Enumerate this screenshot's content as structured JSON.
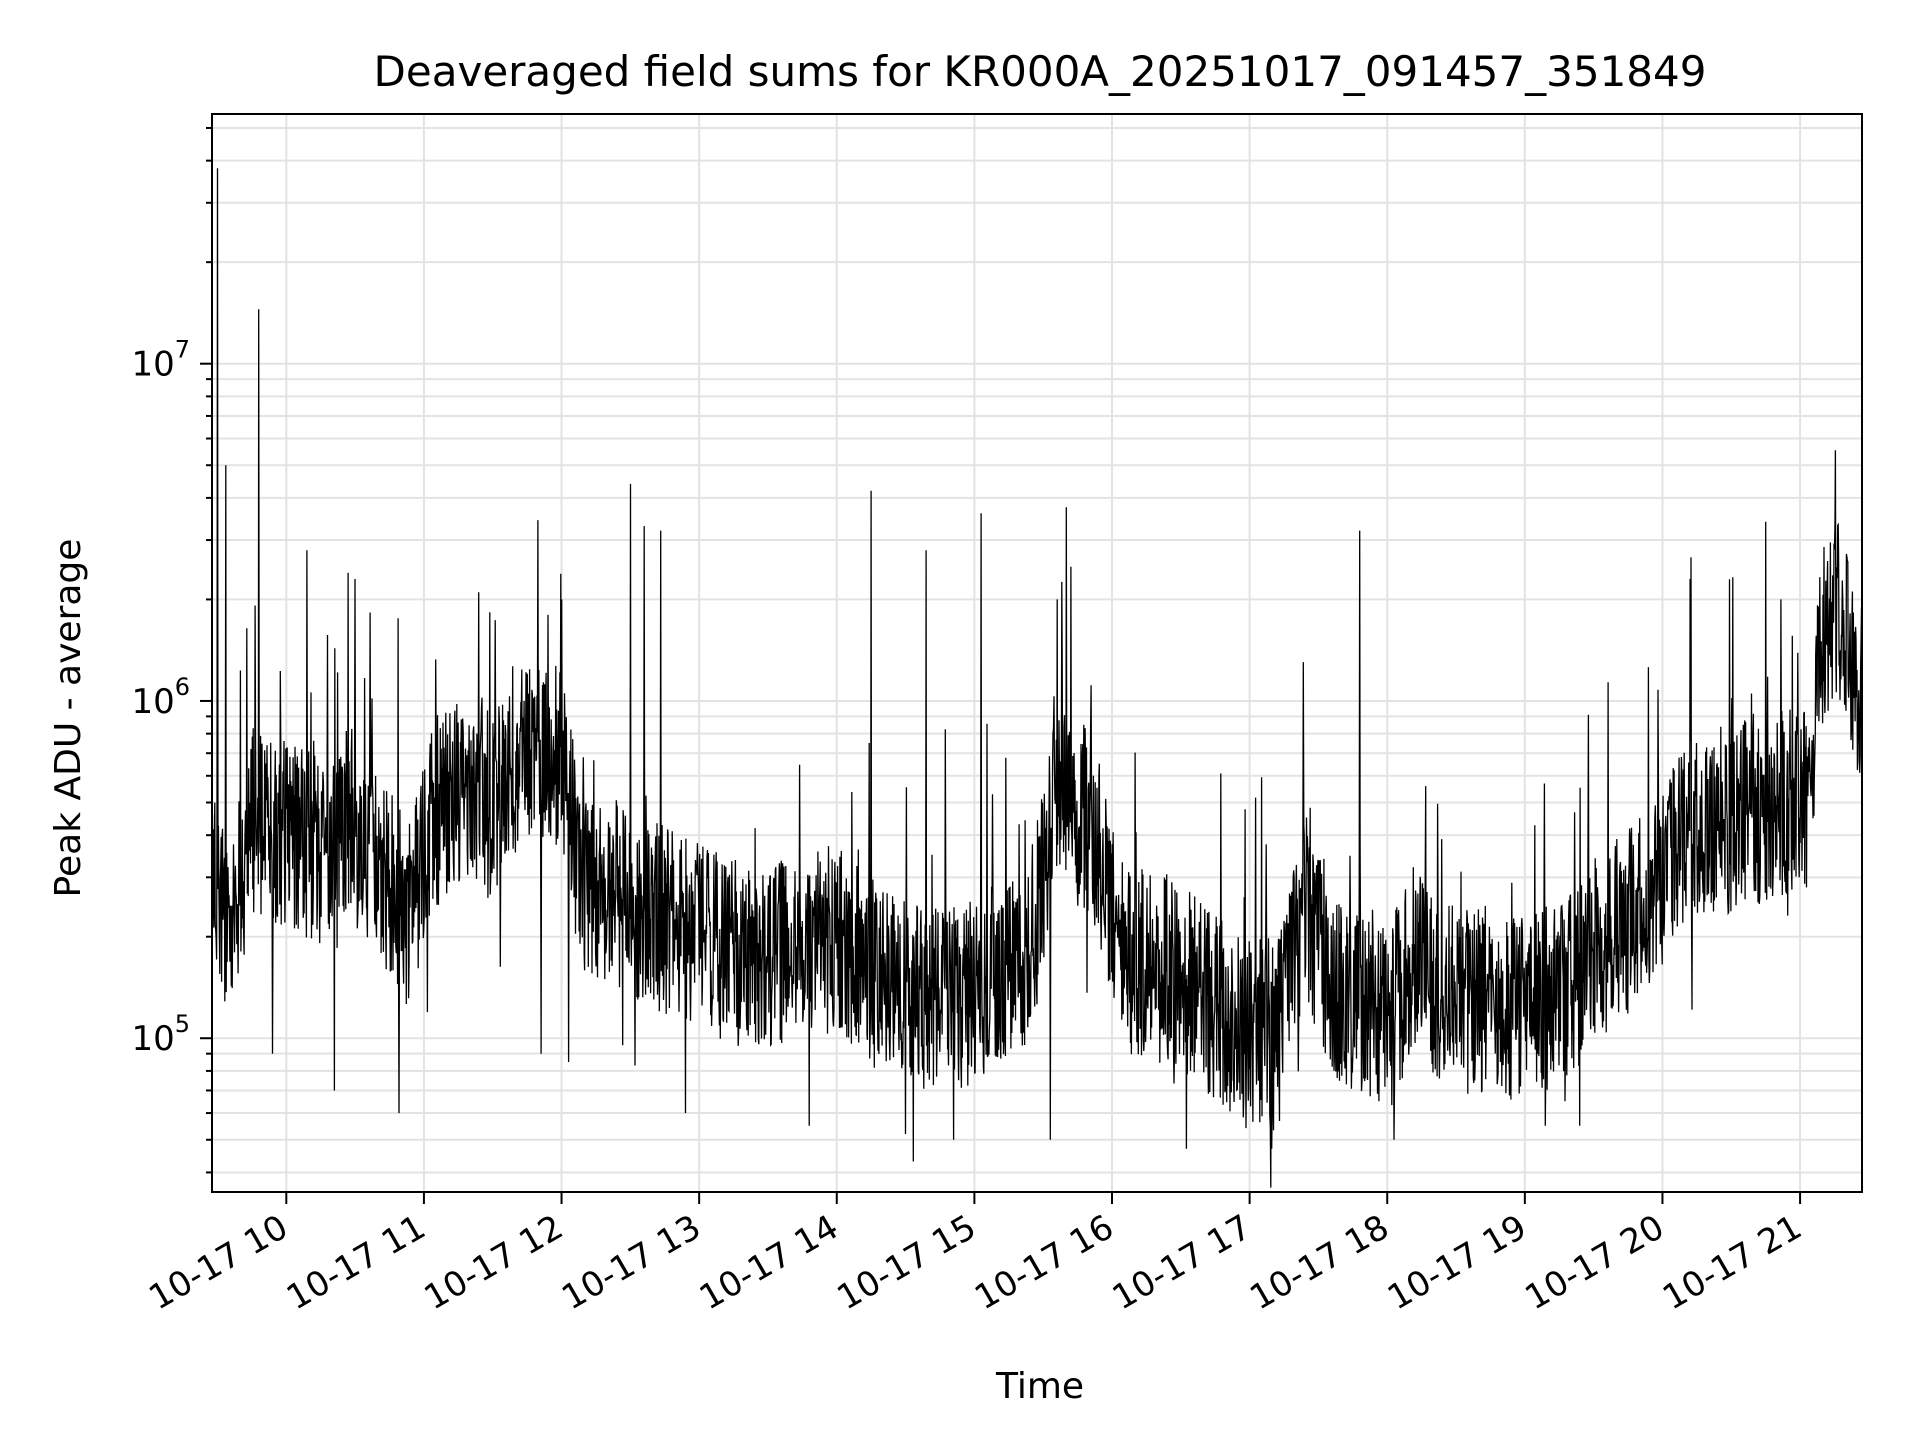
{
  "chart_data": {
    "type": "line",
    "title": "Deaveraged field sums for KR000A_20251017_091457_351849",
    "xlabel": "Time",
    "ylabel": "Peak ADU - average",
    "xscale": "time",
    "yscale": "log",
    "xlim_hours": [
      9.46,
      21.45
    ],
    "ylim": [
      35000,
      55000000
    ],
    "grid": true,
    "x_ticks": [
      {
        "label": "10-17 10",
        "hour": 10
      },
      {
        "label": "10-17 11",
        "hour": 11
      },
      {
        "label": "10-17 12",
        "hour": 12
      },
      {
        "label": "10-17 13",
        "hour": 13
      },
      {
        "label": "10-17 14",
        "hour": 14
      },
      {
        "label": "10-17 15",
        "hour": 15
      },
      {
        "label": "10-17 16",
        "hour": 16
      },
      {
        "label": "10-17 17",
        "hour": 17
      },
      {
        "label": "10-17 18",
        "hour": 18
      },
      {
        "label": "10-17 19",
        "hour": 19
      },
      {
        "label": "10-17 20",
        "hour": 20
      },
      {
        "label": "10-17 21",
        "hour": 21
      }
    ],
    "y_ticks": [
      {
        "base": "10",
        "exp": "5",
        "value": 100000
      },
      {
        "base": "10",
        "exp": "6",
        "value": 1000000
      },
      {
        "base": "10",
        "exp": "7",
        "value": 10000000
      }
    ],
    "series": [
      {
        "name": "Peak ADU - average",
        "color": "#000000",
        "base_profile": [
          [
            9.46,
            300000
          ],
          [
            9.6,
            200000
          ],
          [
            9.75,
            450000
          ],
          [
            10.0,
            400000
          ],
          [
            10.3,
            350000
          ],
          [
            10.55,
            400000
          ],
          [
            10.9,
            230000
          ],
          [
            11.05,
            450000
          ],
          [
            11.3,
            550000
          ],
          [
            11.5,
            480000
          ],
          [
            11.8,
            750000
          ],
          [
            12.0,
            650000
          ],
          [
            12.15,
            300000
          ],
          [
            12.5,
            250000
          ],
          [
            12.8,
            220000
          ],
          [
            13.2,
            180000
          ],
          [
            13.6,
            180000
          ],
          [
            14.0,
            200000
          ],
          [
            14.3,
            150000
          ],
          [
            14.6,
            130000
          ],
          [
            14.9,
            130000
          ],
          [
            15.2,
            160000
          ],
          [
            15.4,
            180000
          ],
          [
            15.6,
            500000
          ],
          [
            15.85,
            450000
          ],
          [
            16.05,
            180000
          ],
          [
            16.5,
            150000
          ],
          [
            16.9,
            110000
          ],
          [
            17.2,
            100000
          ],
          [
            17.4,
            250000
          ],
          [
            17.6,
            150000
          ],
          [
            17.8,
            120000
          ],
          [
            18.0,
            110000
          ],
          [
            18.2,
            180000
          ],
          [
            18.4,
            130000
          ],
          [
            18.7,
            130000
          ],
          [
            19.0,
            120000
          ],
          [
            19.3,
            140000
          ],
          [
            19.6,
            200000
          ],
          [
            19.9,
            250000
          ],
          [
            20.1,
            400000
          ],
          [
            20.5,
            450000
          ],
          [
            20.9,
            500000
          ],
          [
            21.05,
            500000
          ],
          [
            21.15,
            1500000
          ],
          [
            21.3,
            2000000
          ],
          [
            21.45,
            1000000
          ]
        ],
        "spikes": [
          [
            9.5,
            38000000
          ],
          [
            9.56,
            5000000
          ],
          [
            9.8,
            14500000
          ],
          [
            10.15,
            2800000
          ],
          [
            10.45,
            2400000
          ],
          [
            10.5,
            2300000
          ],
          [
            11.4,
            2100000
          ],
          [
            11.9,
            1800000
          ],
          [
            12.0,
            2000000
          ],
          [
            12.5,
            4400000
          ],
          [
            12.6,
            3300000
          ],
          [
            12.72,
            3200000
          ],
          [
            14.25,
            4200000
          ],
          [
            14.65,
            2800000
          ],
          [
            15.05,
            3600000
          ],
          [
            15.6,
            2000000
          ],
          [
            15.7,
            2500000
          ],
          [
            17.8,
            3200000
          ],
          [
            20.2,
            2300000
          ],
          [
            20.75,
            3400000
          ],
          [
            20.86,
            2000000
          ],
          [
            21.2,
            2600000
          ]
        ],
        "dips": [
          [
            9.9,
            90000
          ],
          [
            10.35,
            70000
          ],
          [
            10.82,
            60000
          ],
          [
            11.85,
            90000
          ],
          [
            12.05,
            85000
          ],
          [
            12.9,
            60000
          ],
          [
            13.8,
            55000
          ],
          [
            14.5,
            52000
          ],
          [
            14.85,
            50000
          ],
          [
            15.55,
            50000
          ],
          [
            16.54,
            47000
          ],
          [
            17.16,
            47000
          ],
          [
            18.05,
            50000
          ],
          [
            19.15,
            55000
          ],
          [
            19.4,
            55000
          ]
        ],
        "spread": 0.28,
        "seed": 351849
      }
    ]
  }
}
